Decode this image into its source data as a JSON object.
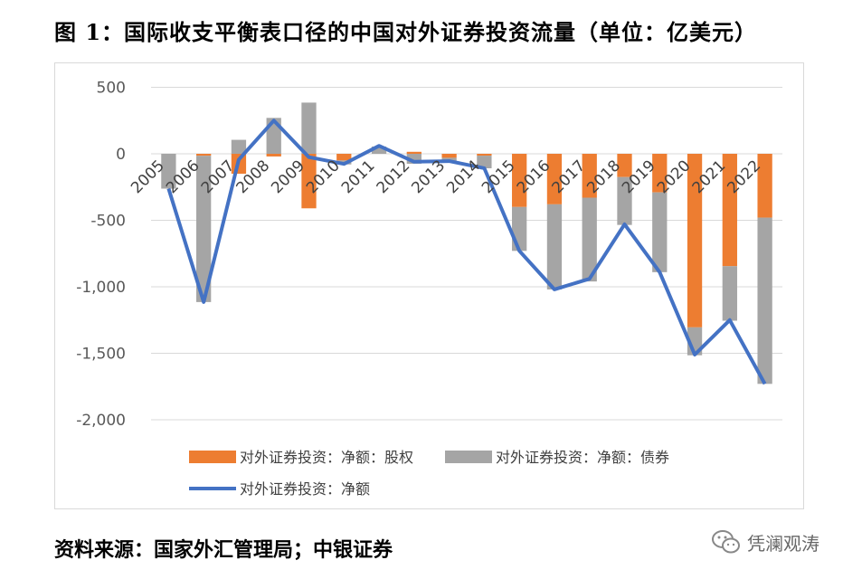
{
  "title": "图 1：国际收支平衡表口径的中国对外证券投资流量（单位：亿美元）",
  "source": "资料来源：国家外汇管理局；中银证券",
  "watermark": "凭澜观涛",
  "chart_data": {
    "type": "bar",
    "stacked": true,
    "categories": [
      "2005",
      "2006",
      "2007",
      "2008",
      "2009",
      "2010",
      "2011",
      "2012",
      "2013",
      "2014",
      "2015",
      "2016",
      "2017",
      "2018",
      "2019",
      "2020",
      "2021",
      "2022"
    ],
    "series": [
      {
        "name": "对外证券投资：净额：股权",
        "type": "bar",
        "color": "#ED7D31",
        "values": [
          0,
          -15,
          -150,
          -20,
          -410,
          -50,
          0,
          15,
          -30,
          -14,
          -400,
          -380,
          -330,
          -175,
          -290,
          -1305,
          -845,
          -480
        ]
      },
      {
        "name": "对外证券投资：净额：债券",
        "type": "bar",
        "color": "#A5A5A5",
        "values": [
          -262,
          -1100,
          105,
          270,
          385,
          -30,
          55,
          -75,
          -25,
          -95,
          -330,
          -640,
          -630,
          -360,
          -600,
          -210,
          -410,
          -1250
        ]
      },
      {
        "name": "对外证券投资：净额",
        "type": "line",
        "color": "#4472C4",
        "values": [
          -262,
          -1115,
          -45,
          250,
          -25,
          -76,
          60,
          -60,
          -55,
          -108,
          -730,
          -1020,
          -940,
          -530,
          -890,
          -1510,
          -1250,
          -1730
        ]
      }
    ],
    "yticks": [
      500,
      0,
      -500,
      -1000,
      -1500,
      -2000
    ],
    "ytick_labels": [
      "500",
      "0",
      "-500",
      "-1,000",
      "-1,500",
      "-2,000"
    ],
    "ylim": [
      -2000,
      500
    ],
    "grid": true,
    "legend_position": "bottom"
  }
}
